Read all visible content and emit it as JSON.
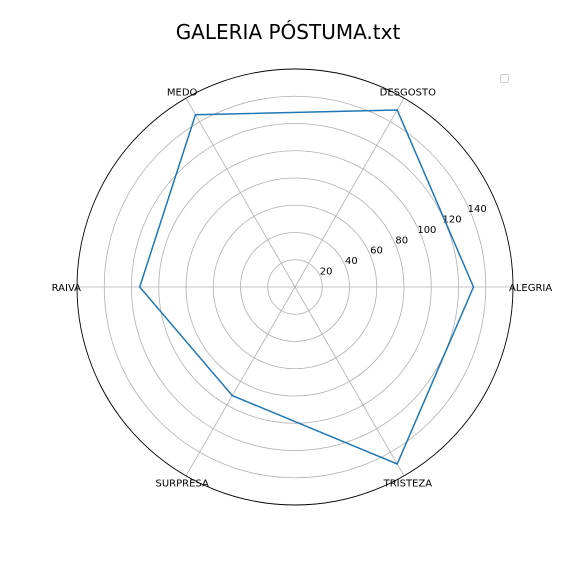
{
  "chart_data": {
    "type": "radar",
    "title": "GALERIA PÓSTUMA.txt",
    "categories": [
      "ALEGRIA",
      "DESGOSTO",
      "MEDO",
      "RAIVA",
      "SURPRESA",
      "TRISTEZA"
    ],
    "series": [
      {
        "values": [
          131,
          150,
          146,
          114,
          92,
          150
        ]
      }
    ],
    "r_ticks": [
      20,
      40,
      60,
      80,
      100,
      120,
      140
    ],
    "rlim": [
      0,
      160
    ],
    "grid": true,
    "legend": "top-right",
    "colors": {
      "series": "#1f77b4",
      "grid": "#b0b0b0",
      "frame": "#000000"
    }
  }
}
